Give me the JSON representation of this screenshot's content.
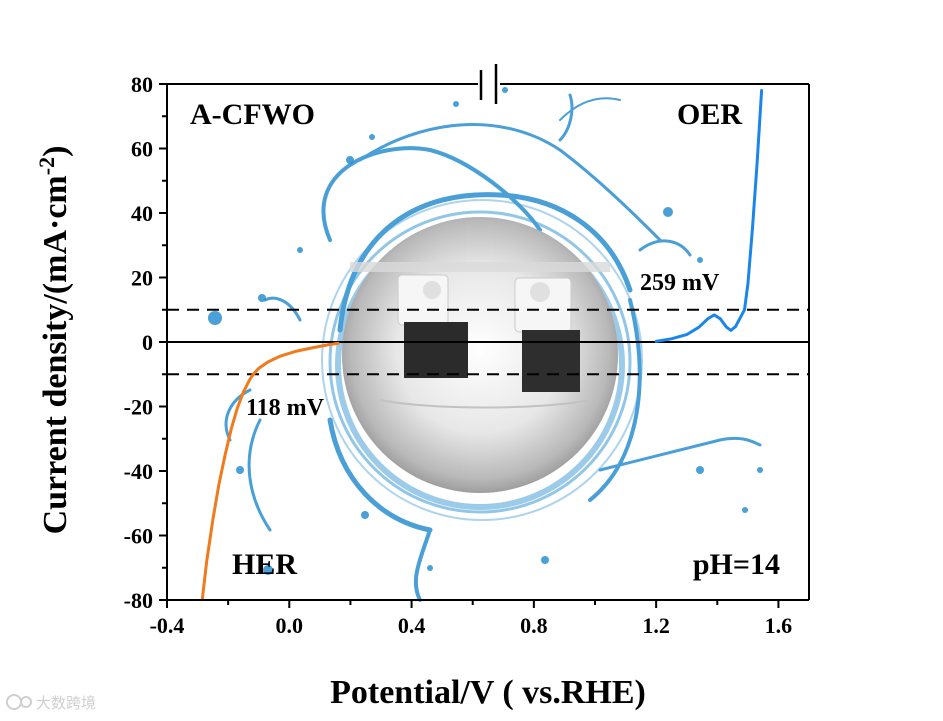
{
  "chart_data": {
    "type": "line",
    "title": "",
    "xlabel": "Potential/V ( vs.RHE)",
    "ylabel_main": "Current density/(mA·cm",
    "ylabel_sup": "-2",
    "ylabel_close": ")",
    "xlim": [
      -0.4,
      1.7
    ],
    "ylim": [
      -80,
      80
    ],
    "xticks": [
      -0.4,
      0.0,
      0.4,
      0.8,
      1.2,
      1.6
    ],
    "xtick_labels": [
      "-0.4",
      "0.0",
      "0.4",
      "0.8",
      "1.2",
      "1.6"
    ],
    "yticks": [
      80,
      60,
      40,
      20,
      0,
      -20,
      -40,
      -60,
      -80
    ],
    "ytick_labels": [
      "80",
      "60",
      "40",
      "20",
      "0",
      "-20",
      "-40",
      "-60",
      "-80"
    ],
    "reference_lines": [
      {
        "y": 10,
        "style": "dashed"
      },
      {
        "y": -10,
        "style": "dashed"
      },
      {
        "y": 0,
        "style": "solid"
      }
    ],
    "axis_break_x": 0.65,
    "series": [
      {
        "name": "HER",
        "color": "#f07a1c",
        "x": [
          -0.285,
          -0.27,
          -0.25,
          -0.23,
          -0.21,
          -0.19,
          -0.17,
          -0.15,
          -0.13,
          -0.118,
          -0.1,
          -0.07,
          -0.03,
          0.02,
          0.08,
          0.13,
          0.16
        ],
        "y": [
          -80,
          -68,
          -55,
          -44,
          -35,
          -27,
          -20.5,
          -15.5,
          -11.8,
          -10,
          -8.2,
          -6.2,
          -4.4,
          -2.9,
          -1.7,
          -0.8,
          -0.4
        ]
      },
      {
        "name": "OER",
        "color": "#1c86e8",
        "x": [
          1.2,
          1.25,
          1.3,
          1.34,
          1.37,
          1.39,
          1.41,
          1.43,
          1.445,
          1.46,
          1.475,
          1.489,
          1.5,
          1.515,
          1.53,
          1.545
        ],
        "y": [
          0.2,
          1.0,
          2.3,
          4.6,
          7.3,
          8.4,
          7.2,
          4.6,
          3.6,
          4.8,
          7.5,
          10,
          18,
          35,
          55,
          78
        ]
      }
    ],
    "annotations": {
      "sample": "A-CFWO",
      "oer": "OER",
      "her": "HER",
      "ph": "pH=14",
      "oer_overpotential": "259 mV",
      "her_overpotential": "118 mV"
    }
  },
  "watermark": "大数跨境",
  "photo_description_icon": "electrolysis-cell-photo-icon",
  "colors": {
    "her": "#f07a1c",
    "oer": "#1c86e8",
    "splash": "#2a8fd0"
  }
}
